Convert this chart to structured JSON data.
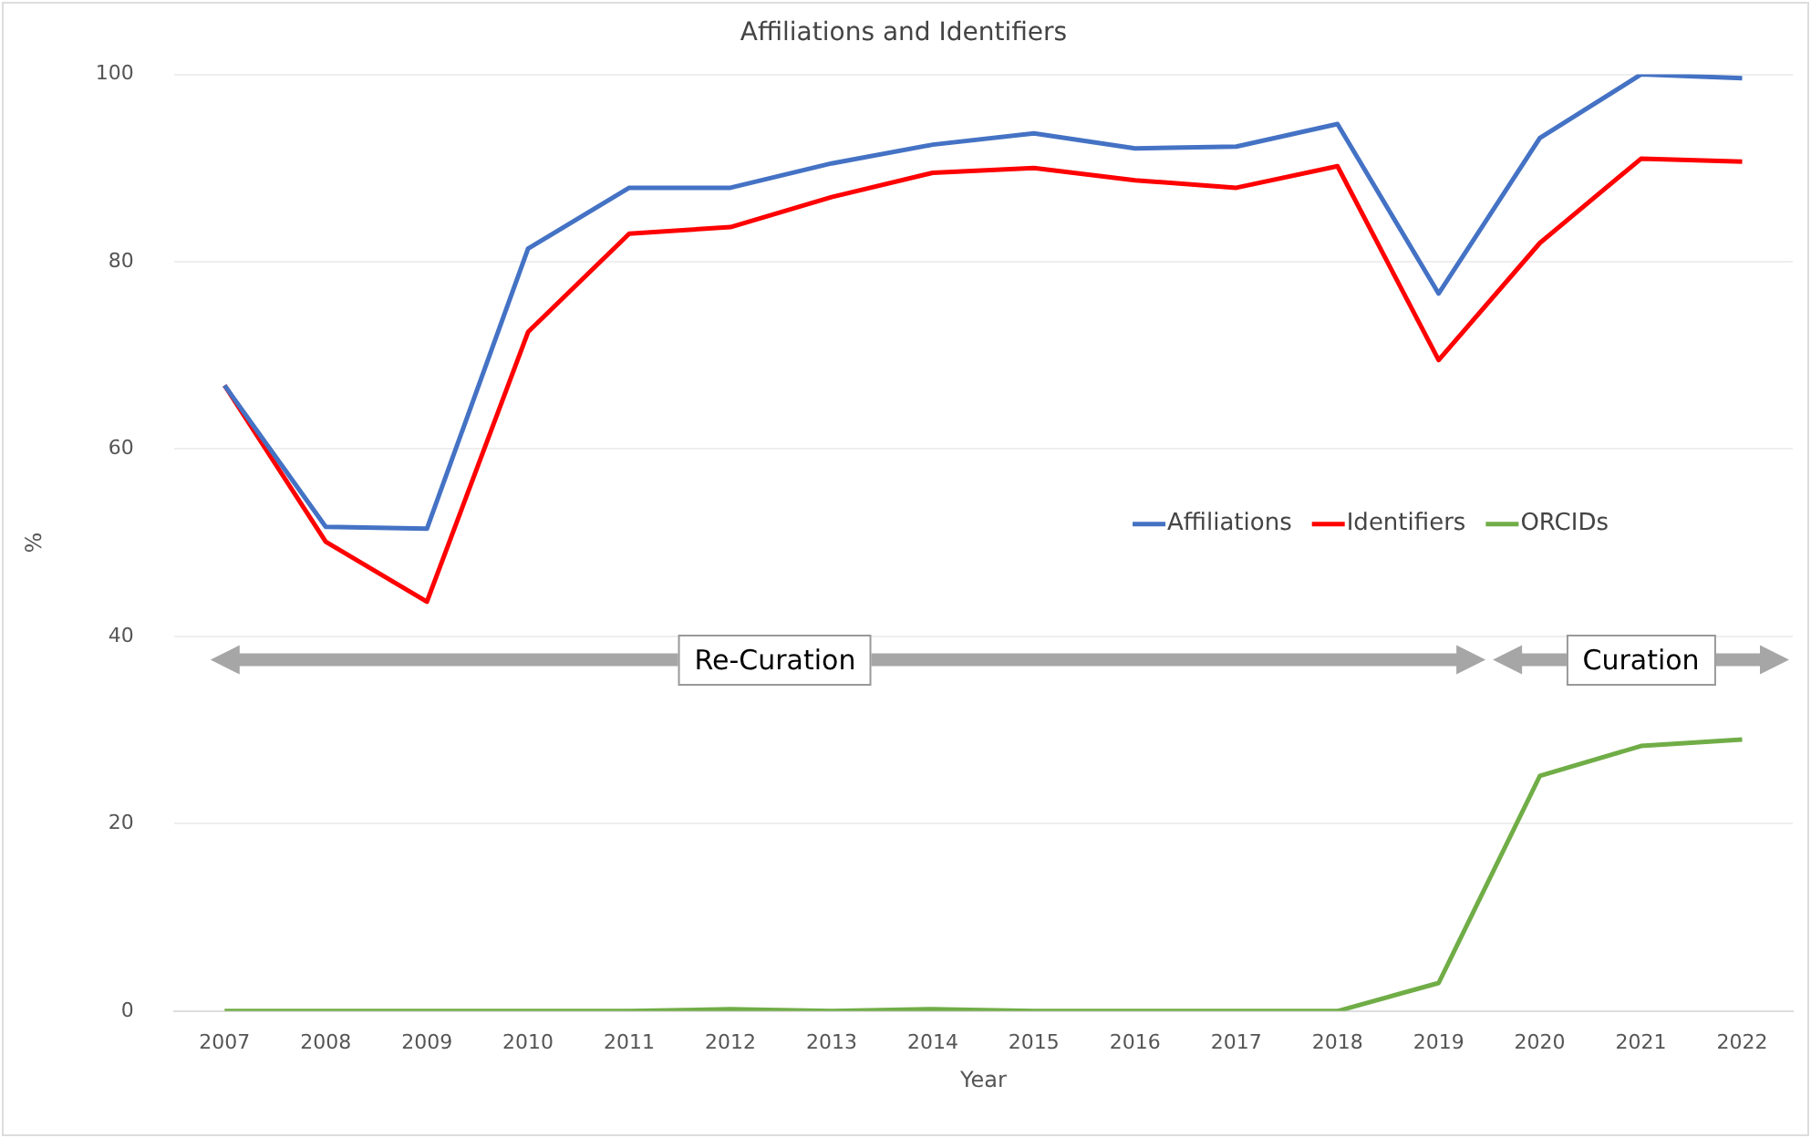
{
  "chart_data": {
    "type": "line",
    "title": "Affiliations and Identifiers",
    "xlabel": "Year",
    "ylabel": "%",
    "categories": [
      "2007",
      "2008",
      "2009",
      "2010",
      "2011",
      "2012",
      "2013",
      "2014",
      "2015",
      "2016",
      "2017",
      "2018",
      "2019",
      "2020",
      "2021",
      "2022"
    ],
    "series": [
      {
        "name": "Affiliations",
        "color": "#4472c4",
        "values": [
          66.8,
          51.7,
          51.5,
          81.4,
          87.9,
          87.9,
          90.5,
          92.5,
          93.7,
          92.1,
          92.3,
          94.7,
          76.6,
          93.2,
          100,
          99.6
        ]
      },
      {
        "name": "Identifiers",
        "color": "#ff0000",
        "values": [
          66.8,
          50.1,
          43.7,
          72.5,
          83.0,
          83.7,
          86.9,
          89.5,
          90.0,
          88.7,
          87.9,
          90.2,
          69.5,
          82.0,
          91.0,
          90.7
        ]
      },
      {
        "name": "ORCIDs",
        "color": "#70ad47",
        "values": [
          0,
          0,
          0,
          0,
          0,
          0.2,
          0,
          0.2,
          0,
          0,
          0,
          0,
          3,
          25.1,
          28.3,
          29
        ]
      }
    ],
    "ylim": [
      0,
      100
    ],
    "yticks": [
      0,
      20,
      40,
      60,
      80,
      100
    ],
    "grid": "y",
    "legend": "right",
    "marker": "none",
    "line_style": "solid",
    "annotations": [
      "Re-Curation",
      "Curation"
    ]
  }
}
